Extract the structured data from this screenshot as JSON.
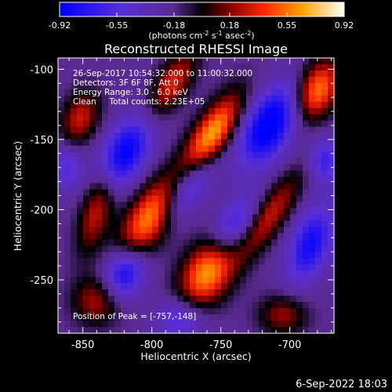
{
  "chart_data": {
    "type": "heatmap",
    "title": "Reconstructed RHESSI Image",
    "xlabel": "Heliocentric X (arcsec)",
    "ylabel": "Heliocentric Y (arcsec)",
    "xlim": [
      -868,
      -668
    ],
    "ylim": [
      -288,
      -92
    ],
    "x_ticks": [
      -850,
      -800,
      -750,
      -700
    ],
    "y_ticks": [
      -100,
      -150,
      -200,
      -250
    ],
    "x_tick_labels": [
      "-850",
      "-800",
      "-750",
      "-700"
    ],
    "y_tick_labels": [
      "-100",
      "-150",
      "-200",
      "-250"
    ],
    "colorbar": {
      "min": -0.92,
      "max": 0.92,
      "tick_values": [
        -0.92,
        -0.55,
        -0.18,
        0.18,
        0.55,
        0.92
      ],
      "tick_labels": [
        "-0.92",
        "-0.55",
        "-0.18",
        "0.18",
        "0.55",
        "0.92"
      ],
      "units_prefix": "(photons cm",
      "units_exp1": "-2",
      "units_mid1": " s",
      "units_exp2": "-1",
      "units_mid2": " asec",
      "units_exp3": "-2",
      "units_suffix": ")"
    },
    "annotations": [
      "26-Sep-2017 10:54:32.000 to 11:00:32.000",
      "Detectors: 3F 6F 8F, Att 0",
      "Energy Range: 3.0 - 6.0 keV",
      "Clean     Total counts: 2.23E+05"
    ],
    "peak_label": "Position of Peak = [-757,-148]",
    "peak": [
      -757,
      -148
    ],
    "peak_value": 0.92,
    "blobs": [
      {
        "x": -757,
        "y": -148,
        "amp": 1.0,
        "sx": 9,
        "sy": 24,
        "rot": -33
      },
      {
        "x": -785,
        "y": -110,
        "amp": 0.6,
        "sx": 8,
        "sy": 18,
        "rot": -33
      },
      {
        "x": -800,
        "y": -205,
        "amp": 0.95,
        "sx": 11,
        "sy": 24,
        "rot": -35
      },
      {
        "x": -760,
        "y": -245,
        "amp": 0.9,
        "sx": 12,
        "sy": 18,
        "rot": -30
      },
      {
        "x": -840,
        "y": -200,
        "amp": 0.55,
        "sx": 8,
        "sy": 22,
        "rot": -15
      },
      {
        "x": -852,
        "y": -135,
        "amp": 0.55,
        "sx": 9,
        "sy": 14,
        "rot": -20
      },
      {
        "x": -840,
        "y": -265,
        "amp": 0.5,
        "sx": 12,
        "sy": 12,
        "rot": 0
      },
      {
        "x": -680,
        "y": -115,
        "amp": 0.85,
        "sx": 10,
        "sy": 16,
        "rot": -25
      },
      {
        "x": -715,
        "y": -205,
        "amp": 0.55,
        "sx": 8,
        "sy": 26,
        "rot": -35
      },
      {
        "x": -705,
        "y": -275,
        "amp": 0.45,
        "sx": 12,
        "sy": 10,
        "rot": 0
      },
      {
        "x": -715,
        "y": -140,
        "amp": -0.9,
        "sx": 12,
        "sy": 22,
        "rot": -30
      },
      {
        "x": -775,
        "y": -185,
        "amp": -0.7,
        "sx": 9,
        "sy": 22,
        "rot": -35
      },
      {
        "x": -820,
        "y": -160,
        "amp": -0.8,
        "sx": 11,
        "sy": 20,
        "rot": -30
      },
      {
        "x": -820,
        "y": -245,
        "amp": -0.75,
        "sx": 10,
        "sy": 14,
        "rot": -25
      },
      {
        "x": -740,
        "y": -210,
        "amp": -0.5,
        "sx": 9,
        "sy": 16,
        "rot": -35
      },
      {
        "x": -685,
        "y": -225,
        "amp": -0.7,
        "sx": 10,
        "sy": 20,
        "rot": -20
      },
      {
        "x": -675,
        "y": -165,
        "amp": -0.5,
        "sx": 8,
        "sy": 12,
        "rot": 0
      },
      {
        "x": -862,
        "y": -170,
        "amp": -0.4,
        "sx": 8,
        "sy": 12,
        "rot": 0
      },
      {
        "x": -780,
        "y": -278,
        "amp": -0.45,
        "sx": 12,
        "sy": 10,
        "rot": 0
      }
    ]
  },
  "footer": {
    "timestamp": "6-Sep-2022 18:03"
  }
}
